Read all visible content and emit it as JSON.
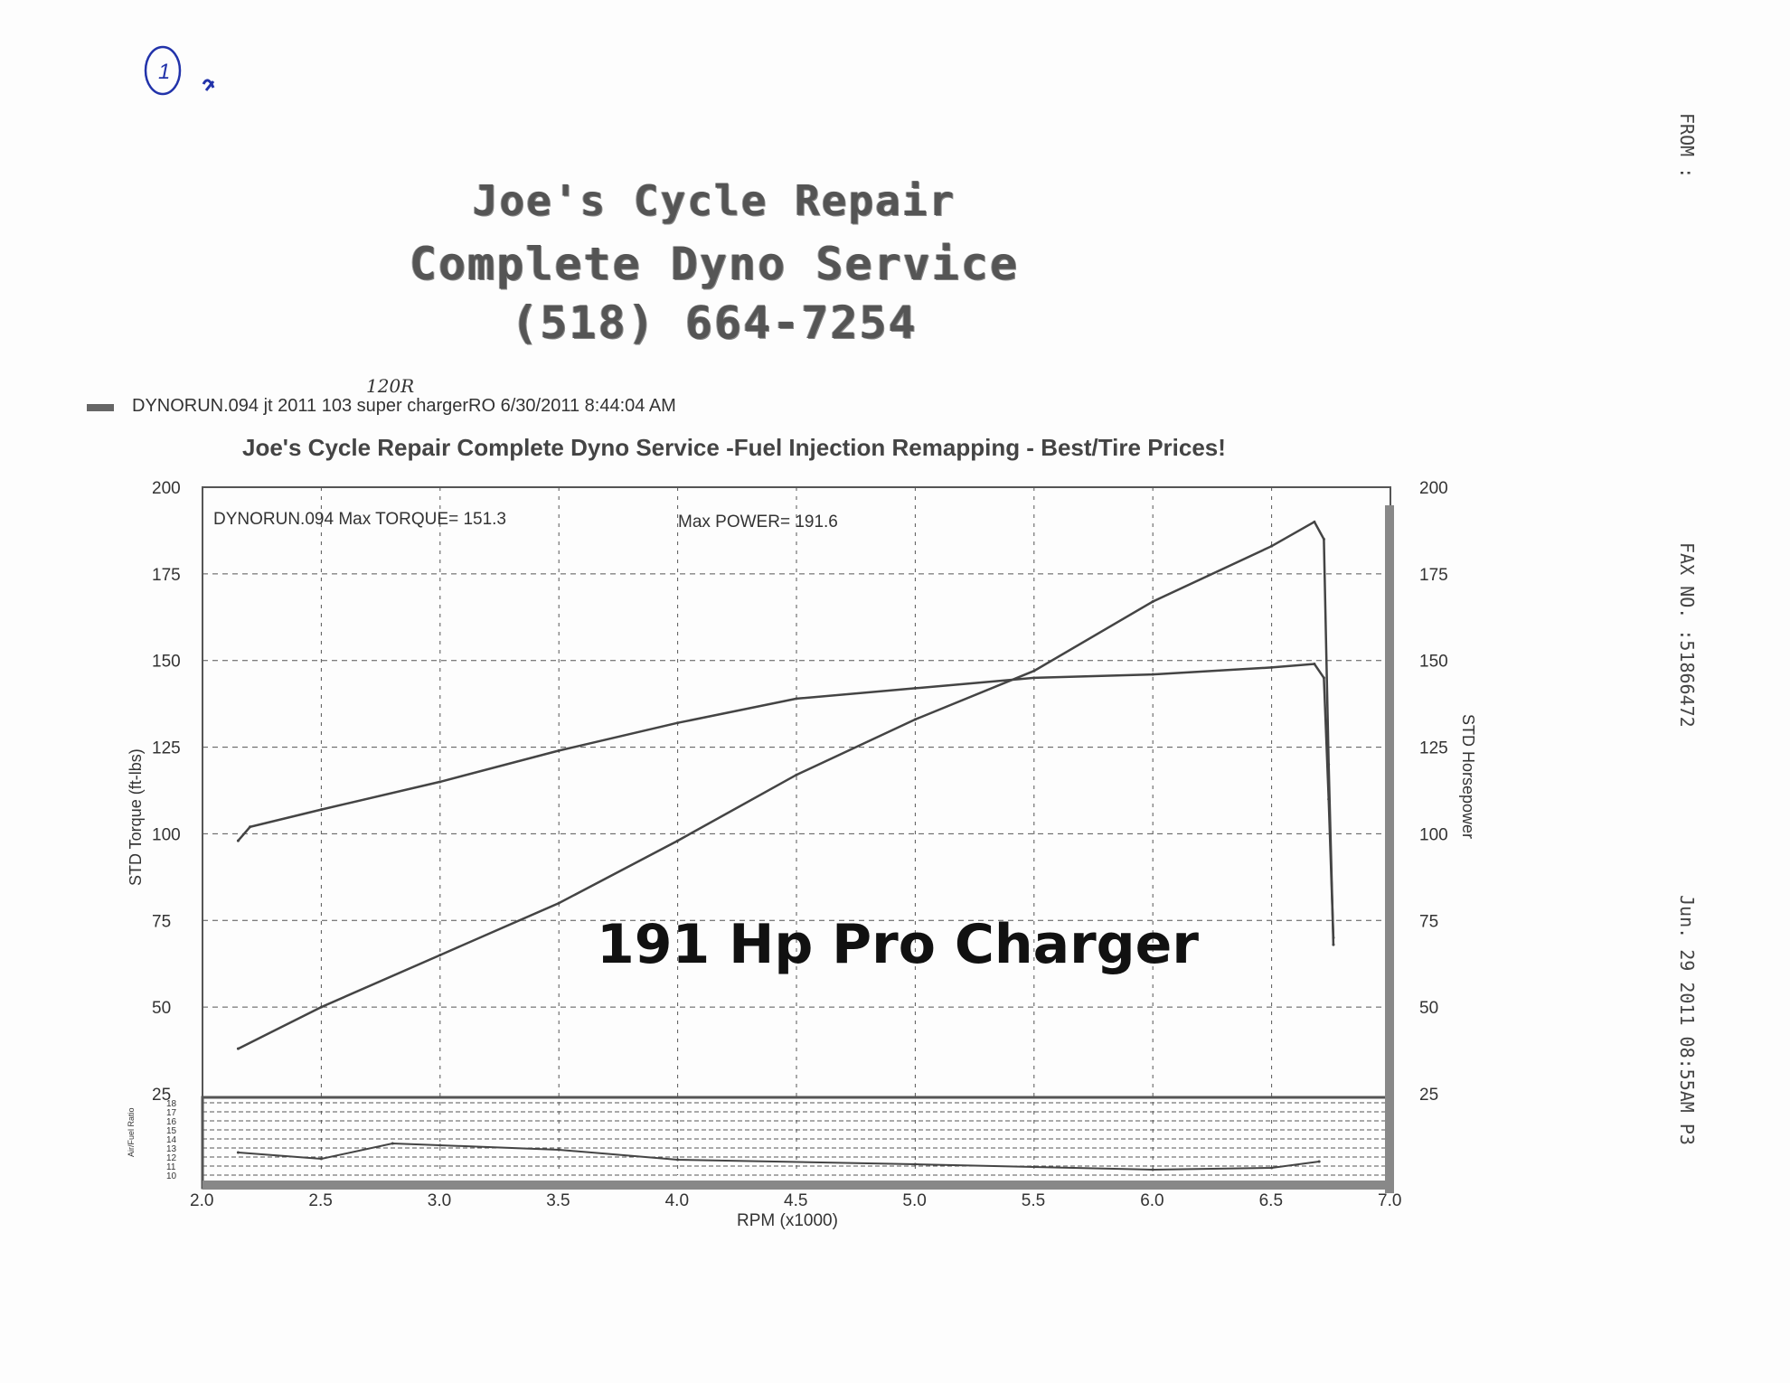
{
  "handwritten": {
    "page_mark": "1",
    "annotation": "120R"
  },
  "header": {
    "line1": "Joe's Cycle Repair",
    "line2": "Complete Dyno Service",
    "line3": "(518) 664-7254"
  },
  "run_info": "DYNORUN.094  jt 2011  103 super chargerRO  6/30/2011 8:44:04 AM",
  "overlay_text": "191 Hp Pro Charger",
  "fax": {
    "from": "FROM :",
    "fax_no": "FAX NO. :51866472",
    "date": "Jun. 29 2011 08:55AM  P3"
  },
  "chart_data": {
    "type": "line",
    "title": "Joe's Cycle Repair Complete Dyno Service -Fuel Injection Remapping - Best/Tire Prices!",
    "annotation_left": "DYNORUN.094  Max TORQUE= 151.3",
    "annotation_right": "Max POWER= 191.6",
    "xlabel": "RPM (x1000)",
    "ylabel_left": "STD Torque (ft-lbs)",
    "ylabel_right": "STD Horsepower",
    "xlim": [
      2.0,
      7.0
    ],
    "ylim": [
      25,
      200
    ],
    "x_ticks": [
      "2.0",
      "2.5",
      "3.0",
      "3.5",
      "4.0",
      "4.5",
      "5.0",
      "5.5",
      "6.0",
      "6.5",
      "7.0"
    ],
    "y_ticks": [
      "200",
      "175",
      "150",
      "125",
      "100",
      "75",
      "50",
      "25"
    ],
    "grid": true,
    "series": [
      {
        "axis": "left",
        "x": [
          2.15,
          2.2,
          2.5,
          3.0,
          3.5,
          4.0,
          4.5,
          5.0,
          5.5,
          6.0,
          6.5,
          6.68,
          6.72,
          6.74,
          6.76
        ],
        "values": [
          98,
          102,
          107,
          115,
          124,
          132,
          139,
          142,
          145,
          146,
          148,
          149,
          145,
          110,
          70
        ]
      },
      {
        "axis": "right",
        "x": [
          2.15,
          2.5,
          3.0,
          3.5,
          4.0,
          4.5,
          5.0,
          5.5,
          6.0,
          6.5,
          6.68,
          6.72,
          6.74,
          6.76
        ],
        "values": [
          38,
          50,
          65,
          80,
          98,
          117,
          133,
          147,
          167,
          183,
          190,
          185,
          120,
          68
        ]
      }
    ],
    "afr": {
      "ylabel": "Air/Fuel Ratio",
      "ylim": [
        10,
        18
      ],
      "y_ticks": [
        "18",
        "17",
        "16",
        "15",
        "14",
        "13",
        "12",
        "11",
        "10"
      ],
      "x": [
        2.15,
        2.5,
        2.8,
        3.0,
        3.5,
        4.0,
        5.0,
        6.0,
        6.5,
        6.7
      ],
      "values": [
        12.5,
        11.8,
        13.5,
        13.3,
        12.8,
        11.7,
        11.2,
        10.6,
        10.8,
        11.5
      ]
    },
    "colors": {
      "line": "#444444",
      "grid": "#555555"
    }
  }
}
